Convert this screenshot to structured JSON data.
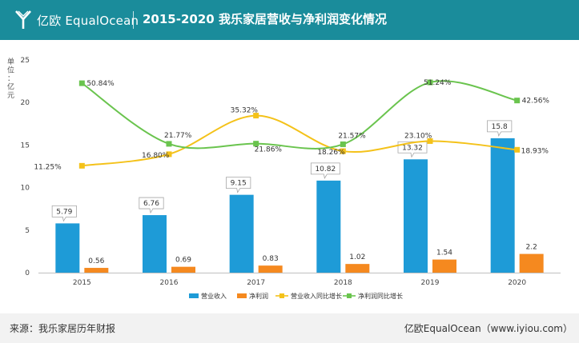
{
  "header": {
    "logo_text": "亿欧 EqualOcean",
    "title": "2015-2020 我乐家居营收与净利润变化情况"
  },
  "footer": {
    "source": "来源：我乐家居历年财报",
    "brand": "亿欧EqualOcean（www.iyiou.com）"
  },
  "chart_data": {
    "type": "bar",
    "unit_label": "单位：亿元",
    "categories": [
      "2015",
      "2016",
      "2017",
      "2018",
      "2019",
      "2020"
    ],
    "ylim": [
      0,
      25
    ],
    "yticks": [
      0,
      5,
      10,
      15,
      20,
      25
    ],
    "grid": false,
    "legend_position": "bottom",
    "bar_series": [
      {
        "name": "营业收入",
        "color": "#1e9bd7",
        "values": [
          5.79,
          6.76,
          9.15,
          10.82,
          13.32,
          15.8
        ],
        "labels": [
          "5.79",
          "6.76",
          "9.15",
          "10.82",
          "13.32",
          "15.8"
        ]
      },
      {
        "name": "净利润",
        "color": "#f5891f",
        "values": [
          0.56,
          0.69,
          0.83,
          1.02,
          1.54,
          2.2
        ],
        "labels": [
          "0.56",
          "0.69",
          "0.83",
          "1.02",
          "1.54",
          "2.2"
        ]
      }
    ],
    "line_series": [
      {
        "name": "营业收入同比增长",
        "color": "#f4c21a",
        "values": [
          11.25,
          16.8,
          35.32,
          18.26,
          23.1,
          18.93
        ],
        "labels": [
          "11.25%",
          "16.80%",
          "35.32%",
          "18.26%",
          "23.10%",
          "18.93%"
        ]
      },
      {
        "name": "净利润同比增长",
        "color": "#6ac44e",
        "values": [
          50.84,
          21.77,
          21.86,
          21.57,
          51.24,
          42.56
        ],
        "labels": [
          "50.84%",
          "21.77%",
          "21.86%",
          "21.57%",
          "51.24%",
          "42.56%"
        ]
      }
    ]
  }
}
